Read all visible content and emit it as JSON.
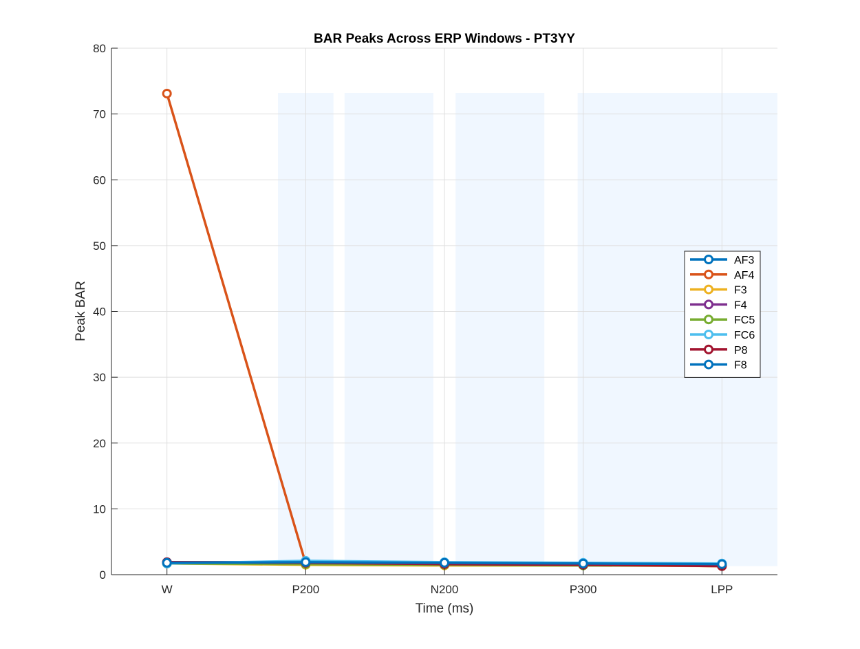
{
  "chart_data": {
    "type": "line",
    "title": "BAR Peaks Across ERP Windows - PT3YY",
    "xlabel": "Time (ms)",
    "ylabel": "Peak BAR",
    "categories": [
      "W",
      "P200",
      "N200",
      "P300",
      "LPP"
    ],
    "ylim": [
      0,
      80
    ],
    "yticks": [
      0,
      10,
      20,
      30,
      40,
      50,
      60,
      70,
      80
    ],
    "grid": true,
    "legend_position": "right",
    "shaded_windows": [
      {
        "x_start": 1.8,
        "x_end": 2.2
      },
      {
        "x_start": 2.28,
        "x_end": 2.92
      },
      {
        "x_start": 3.08,
        "x_end": 3.72
      },
      {
        "x_start": 3.96,
        "x_end": 5.4
      }
    ],
    "series": [
      {
        "name": "AF3",
        "color": "#0072BD",
        "values": [
          1.9,
          1.9,
          1.8,
          1.7,
          1.5
        ]
      },
      {
        "name": "AF4",
        "color": "#D95319",
        "values": [
          73.1,
          1.7,
          1.6,
          1.5,
          1.3
        ]
      },
      {
        "name": "F3",
        "color": "#EDB120",
        "values": [
          1.7,
          1.5,
          1.4,
          1.4,
          1.3
        ]
      },
      {
        "name": "F4",
        "color": "#7E2F8E",
        "values": [
          1.8,
          1.8,
          1.7,
          1.6,
          1.5
        ]
      },
      {
        "name": "FC5",
        "color": "#77AC30",
        "values": [
          1.7,
          1.6,
          1.5,
          1.4,
          1.4
        ]
      },
      {
        "name": "FC6",
        "color": "#4DBEEE",
        "values": [
          1.7,
          2.1,
          1.9,
          1.8,
          1.7
        ]
      },
      {
        "name": "P8",
        "color": "#A2142F",
        "values": [
          1.9,
          1.8,
          1.6,
          1.5,
          1.3
        ]
      },
      {
        "name": "F8",
        "color": "#0072BD",
        "values": [
          1.8,
          1.9,
          1.8,
          1.7,
          1.6
        ]
      }
    ]
  }
}
